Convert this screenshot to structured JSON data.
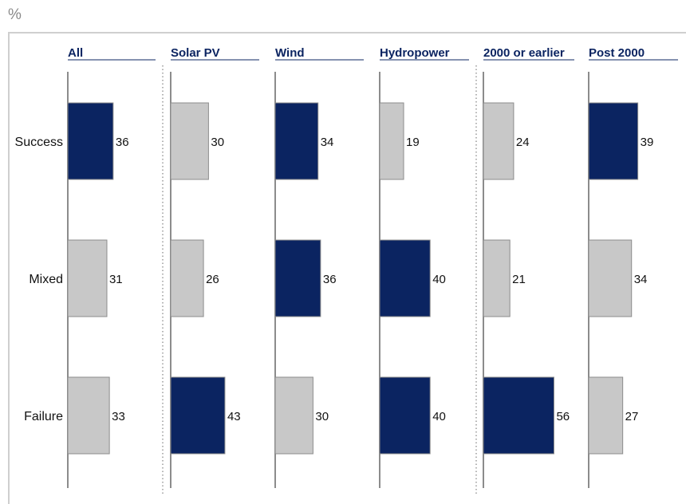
{
  "unit_label": "%",
  "colors": {
    "highlight": "#0b2461",
    "neutral": "#c8c8c8",
    "bar_stroke": "#8c8c8c",
    "axis": "#8c8c8c",
    "title": "#0b2461"
  },
  "chart_data": {
    "type": "bar",
    "orientation": "horizontal",
    "categories": [
      "Success",
      "Mixed",
      "Failure"
    ],
    "panels": [
      {
        "name": "All",
        "values": [
          36,
          31,
          33
        ],
        "highlight": [
          true,
          false,
          false
        ],
        "separator_before": false
      },
      {
        "name": "Solar PV",
        "values": [
          30,
          26,
          43
        ],
        "highlight": [
          false,
          false,
          true
        ],
        "separator_before": true
      },
      {
        "name": "Wind",
        "values": [
          34,
          36,
          30
        ],
        "highlight": [
          true,
          true,
          false
        ],
        "separator_before": false
      },
      {
        "name": "Hydropower",
        "values": [
          19,
          40,
          40
        ],
        "highlight": [
          false,
          true,
          true
        ],
        "separator_before": false
      },
      {
        "name": "2000 or earlier",
        "values": [
          24,
          21,
          56
        ],
        "highlight": [
          false,
          false,
          true
        ],
        "separator_before": true
      },
      {
        "name": "Post 2000",
        "values": [
          39,
          34,
          27
        ],
        "highlight": [
          true,
          false,
          false
        ],
        "separator_before": false
      }
    ],
    "grid": false,
    "legend": "none"
  }
}
